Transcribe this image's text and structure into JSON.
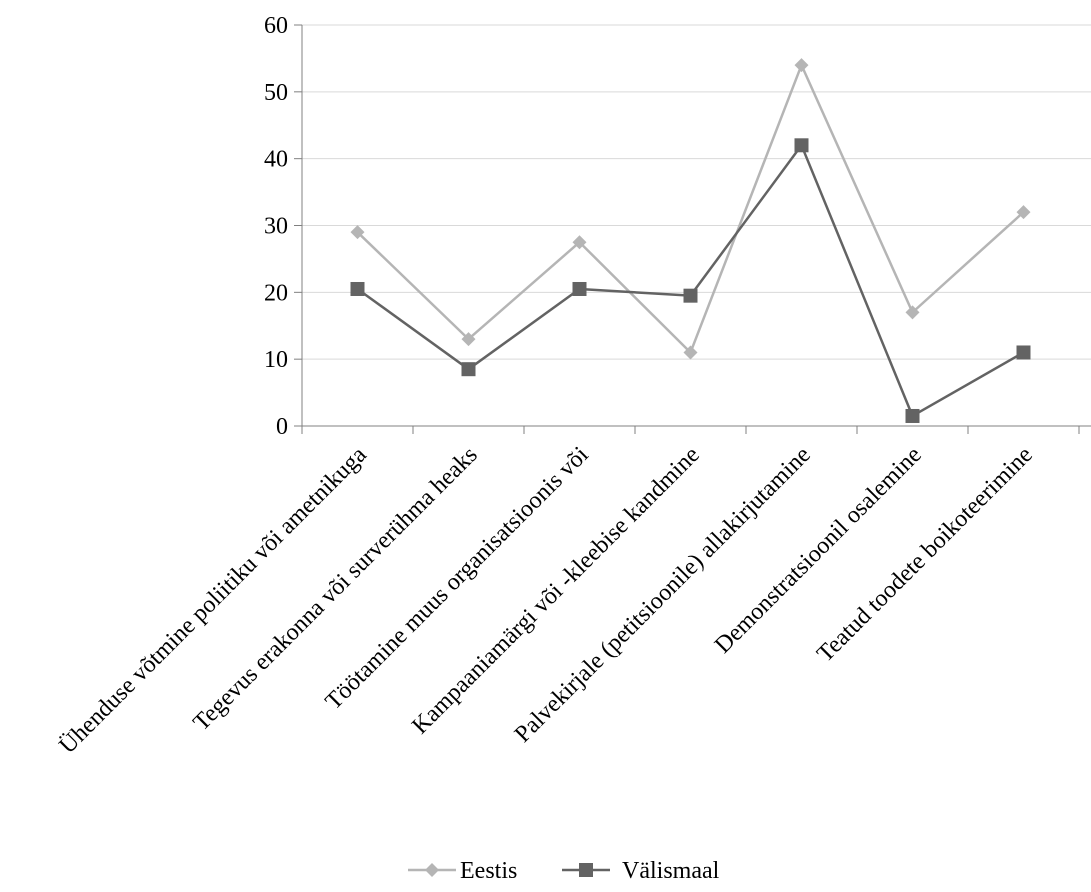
{
  "chart_data": {
    "type": "line",
    "categories": [
      "Ühenduse võtmine poliitiku või ametnikuga",
      "Tegevus erakonna või surverühma heaks",
      "Töötamine muus organisatsioonis või",
      "Kampaaniamärgi või -kleebise kandmine",
      "Palvekirjale (petitsioonile) allakirjutamine",
      "Demonstratsioonil osalemine",
      "Teatud toodete boikoteerimine"
    ],
    "series": [
      {
        "name": "Eestis",
        "values": [
          29,
          13,
          27.5,
          11,
          54,
          17,
          32
        ],
        "color": "#b5b5b5",
        "marker": "diamond"
      },
      {
        "name": "Välismaal",
        "values": [
          20.5,
          8.5,
          20.5,
          19.5,
          42,
          1.5,
          11
        ],
        "color": "#636363",
        "marker": "square"
      }
    ],
    "yticks": [
      "0",
      "10",
      "20",
      "30",
      "40",
      "50",
      "60"
    ],
    "ylim": [
      0,
      60
    ],
    "grid": "horizontal",
    "legend_position": "bottom"
  }
}
